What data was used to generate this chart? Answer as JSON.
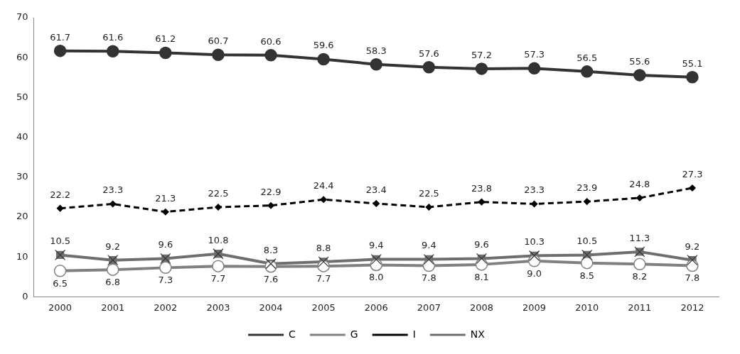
{
  "chart_data": {
    "type": "line",
    "categories": [
      "2000",
      "2001",
      "2002",
      "2003",
      "2004",
      "2005",
      "2006",
      "2007",
      "2008",
      "2009",
      "2010",
      "2011",
      "2012"
    ],
    "ylim": [
      0,
      70
    ],
    "yticks": [
      0,
      10,
      20,
      30,
      40,
      50,
      60,
      70
    ],
    "grid": false,
    "legend": "bottom",
    "series": [
      {
        "name": "C",
        "color": "#333333",
        "marker": "circle",
        "line_style": "solid",
        "values": [
          61.7,
          61.6,
          61.2,
          60.7,
          60.6,
          59.6,
          58.3,
          57.6,
          57.2,
          57.3,
          56.5,
          55.6,
          55.1
        ],
        "value_labels": [
          "61.7",
          "61.6",
          "61.2",
          "60.7",
          "60.6",
          "59.6",
          "58.3",
          "57.6",
          "57.2",
          "57.3",
          "56.5",
          "55.6",
          "55.1"
        ]
      },
      {
        "name": "G",
        "color": "#808080",
        "marker": "circle",
        "line_style": "solid",
        "values": [
          6.5,
          6.8,
          7.3,
          7.7,
          7.6,
          7.7,
          8.0,
          7.8,
          8.1,
          9.0,
          8.5,
          8.2,
          7.8
        ],
        "value_labels": [
          "6.5",
          "6.8",
          "7.3",
          "7.7",
          "7.6",
          "7.7",
          "8.0",
          "7.8",
          "8.1",
          "9.0",
          "8.5",
          "8.2",
          "7.8"
        ]
      },
      {
        "name": "I",
        "color": "#000000",
        "marker": "diamond",
        "line_style": "dashed",
        "values": [
          22.2,
          23.3,
          21.3,
          22.5,
          22.9,
          24.4,
          23.4,
          22.5,
          23.8,
          23.3,
          23.9,
          24.8,
          27.3
        ],
        "value_labels": [
          "22.2",
          "23.3",
          "21.3",
          "22.5",
          "22.9",
          "24.4",
          "23.4",
          "22.5",
          "23.8",
          "23.3",
          "23.9",
          "24.8",
          "27.3"
        ]
      },
      {
        "name": "NX",
        "color": "#6e6e6e",
        "marker": "square",
        "line_style": "solid",
        "values": [
          10.5,
          9.2,
          9.6,
          10.8,
          8.3,
          8.8,
          9.4,
          9.4,
          9.6,
          10.3,
          10.5,
          11.3,
          9.2
        ],
        "value_labels": [
          "10.5",
          "9.2",
          "9.6",
          "10.8",
          "8.3",
          "8.8",
          "9.4",
          "9.4",
          "9.6",
          "10.3",
          "10.5",
          "11.3",
          "9.2"
        ]
      }
    ]
  }
}
